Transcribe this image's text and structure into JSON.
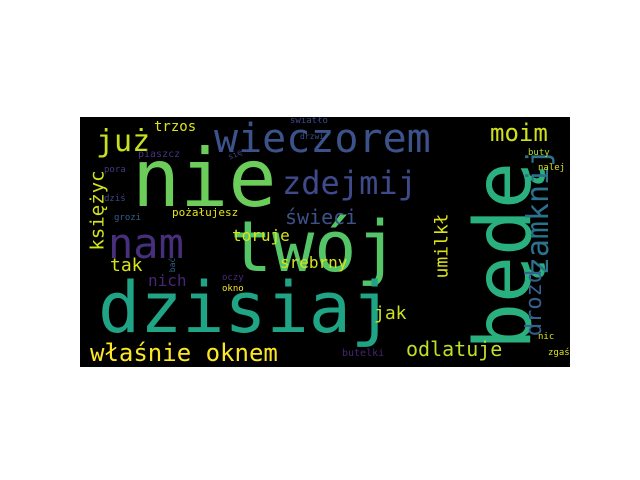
{
  "word_cloud": {
    "background": "#000000",
    "words": [
      {
        "text": "twój",
        "color": "#55c667"
      },
      {
        "text": "nie",
        "color": "#6ccd5a"
      },
      {
        "text": "będę",
        "color": "#2ab07f"
      },
      {
        "text": "dzisiaj",
        "color": "#20a486"
      },
      {
        "text": "wieczorem",
        "color": "#3b528b"
      },
      {
        "text": "nam",
        "color": "#472f7d"
      },
      {
        "text": "zdejmij",
        "color": "#3e4a89"
      },
      {
        "text": "zamknij",
        "color": "#2c728e"
      },
      {
        "text": "już",
        "color": "#c7e020"
      },
      {
        "text": "moim",
        "color": "#d0e11c"
      },
      {
        "text": "właśnie oknem",
        "color": "#fde725"
      },
      {
        "text": "świeci",
        "color": "#3b528b"
      },
      {
        "text": "umilkł",
        "color": "#dde318"
      },
      {
        "text": "drozd",
        "color": "#355f8d"
      },
      {
        "text": "odlatuje",
        "color": "#bddf26"
      },
      {
        "text": "księżyc",
        "color": "#d2e21b"
      },
      {
        "text": "toruje",
        "color": "#d8e219"
      },
      {
        "text": "srebrny",
        "color": "#d5e21a"
      },
      {
        "text": "tak",
        "color": "#d8e219"
      },
      {
        "text": "jak",
        "color": "#cae11f"
      },
      {
        "text": "nich",
        "color": "#482576"
      },
      {
        "text": "trzos",
        "color": "#dae319"
      },
      {
        "text": "pożałujesz",
        "color": "#e5e419"
      },
      {
        "text": "butelki",
        "color": "#482475"
      },
      {
        "text": "piaszcz",
        "color": "#46337f"
      },
      {
        "text": "światło",
        "color": "#3e4989"
      },
      {
        "text": "się",
        "color": "#423f85"
      },
      {
        "text": "buty",
        "color": "#b5de2b"
      },
      {
        "text": "nalej",
        "color": "#d8e219"
      },
      {
        "text": "pora",
        "color": "#443983"
      },
      {
        "text": "dziś",
        "color": "#3f4788"
      },
      {
        "text": "grozi",
        "color": "#365d8d"
      },
      {
        "text": "bać",
        "color": "#31678e"
      },
      {
        "text": "oczy",
        "color": "#472d7b"
      },
      {
        "text": "drzwi",
        "color": "#3b528b"
      },
      {
        "text": "okno",
        "color": "#fde725"
      },
      {
        "text": "nic",
        "color": "#d8e219"
      },
      {
        "text": "zgaś",
        "color": "#dde318"
      }
    ]
  }
}
